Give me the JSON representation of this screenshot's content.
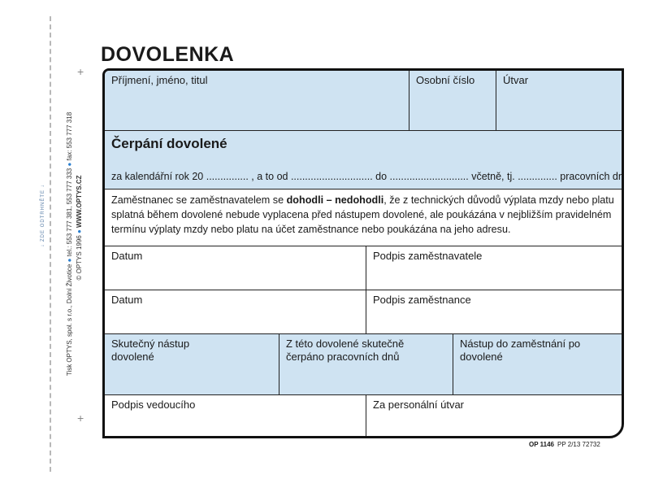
{
  "margin": {
    "cut_here": "ZDE ODTRHNĚTE",
    "printer_line1": "Tisk OPTYS, spol. s r.o., Dolní Životice",
    "printer_tel": "tel.: 553 777 381, 553 777 333",
    "printer_fax": "fax: 553 777 318",
    "copyright": "© OPTYS 1996",
    "website": "WWW.OPTYS.CZ"
  },
  "title": "DOVOLENKA",
  "form": {
    "name_label": "Příjmení, jméno, titul",
    "personal_number_label": "Osobní číslo",
    "department_label": "Útvar",
    "section_heading": "Čerpání dovolené",
    "leave_line": "za kalendářní rok 20 ............... , a to od ............................. do ............................ včetně, tj. .............. pracovních dnů.",
    "agreement_prefix": "Zaměstnanec se zaměstnavatelem se ",
    "agreement_bold": "dohodli – nedohodli",
    "agreement_suffix": ", že z technických důvodů výplata mzdy nebo platu splatná během dovolené nebude vyplacena před nástupem dovolené, ale poukázána v nejbližším pravidelném termínu výplaty mzdy nebo platu na účet zaměstnance nebo poukázána na jeho adresu.",
    "date_label_1": "Datum",
    "employer_signature_label": "Podpis zaměstnavatele",
    "date_label_2": "Datum",
    "employee_signature_label": "Podpis zaměstnance",
    "actual_start_label": "Skutečný nástup dovolené",
    "days_taken_label": "Z této dovolené skutečně čerpáno pracovních dnů",
    "return_label": "Nástup do zaměstnání po dovolené",
    "manager_signature_label": "Podpis vedoucího",
    "hr_label": "Za personální útvar"
  },
  "footer": {
    "form_code": "OP 1146",
    "print_info": "PP 2/13  72732"
  },
  "colors": {
    "field_fill": "#cfe3f2",
    "border": "#111111",
    "accent_dot": "#2a7fd0"
  }
}
